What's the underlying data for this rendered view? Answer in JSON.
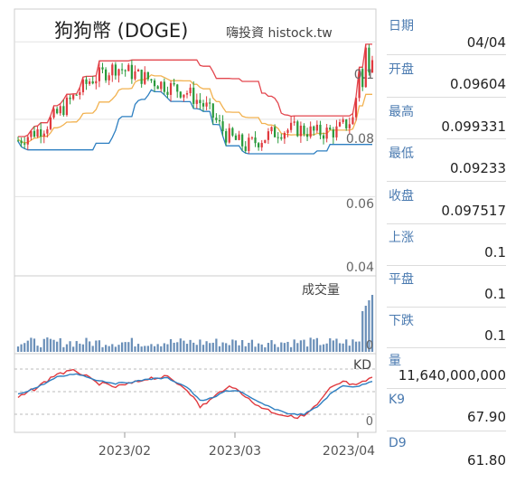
{
  "chart_data": {
    "type": "candlestick",
    "title": "狗狗幣 (DOGE)",
    "watermark": "嗨投資 histock.tw",
    "x_tick_labels": [
      "2023/02",
      "2023/03",
      "2023/04"
    ],
    "price_axis": {
      "ticks": [
        "0.1",
        "0.08",
        "0.06",
        "0.04"
      ],
      "ylim": [
        0.04,
        0.108
      ]
    },
    "volume_label": "成交量",
    "volume_axis_label": "0",
    "kd_label": "KD",
    "kd_axis_label": "0",
    "colors": {
      "up": "#e0393e",
      "down": "#2a9a3c",
      "band_upper": "#e3474f",
      "band_lower": "#2d7fc1",
      "band_mid": "#f2b250",
      "volume": "#6a8fb8",
      "k_line": "#2d7fc1",
      "d_line": "#e0393e"
    }
  },
  "panel": [
    {
      "label": "日期",
      "value": "04/04"
    },
    {
      "label": "开盘",
      "value": "0.09604"
    },
    {
      "label": "最高",
      "value": "0.099331"
    },
    {
      "label": "最低",
      "value": "0.09233"
    },
    {
      "label": "收盘",
      "value": "0.097517"
    },
    {
      "label": "上涨",
      "value": "0.1"
    },
    {
      "label": "平盘",
      "value": "0.1"
    },
    {
      "label": "下跌",
      "value": "0.1"
    },
    {
      "label": "量",
      "value": "11,640,000,000"
    },
    {
      "label": "K9",
      "value": "67.90"
    },
    {
      "label": "D9",
      "value": "61.80"
    }
  ]
}
